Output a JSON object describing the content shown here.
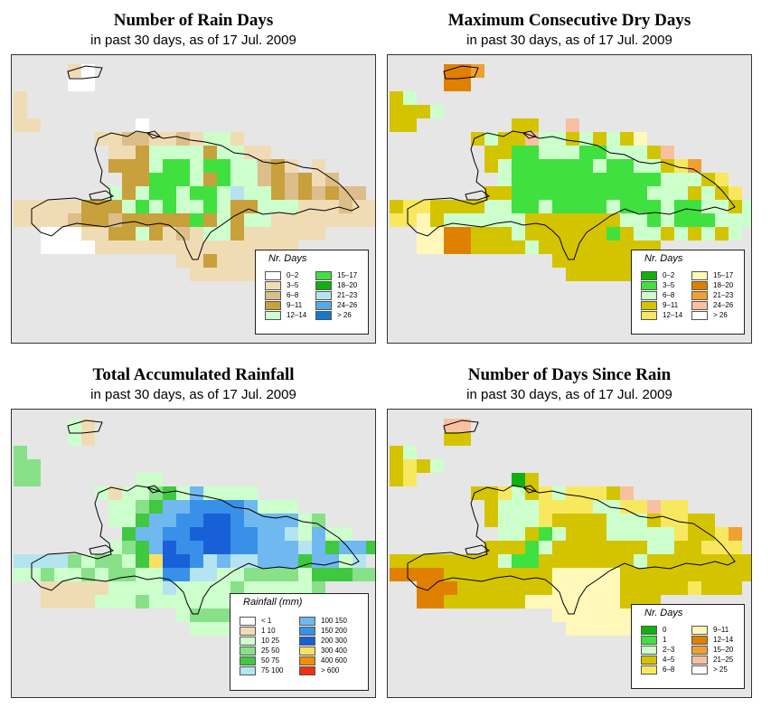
{
  "subtitle": "in past 30 days, as of  17 Jul. 2009",
  "panels": [
    {
      "id": "rain-days",
      "title": "Number of Rain Days",
      "subtitle": "in past 30 days, as of  17 Jul. 2009",
      "legend_title": "Nr. Days",
      "legend": [
        {
          "label": "0–2",
          "color": "#ffffff"
        },
        {
          "label": "3–5",
          "color": "#f0dcb4"
        },
        {
          "label": "6–8",
          "color": "#dcbe8a"
        },
        {
          "label": "9–11",
          "color": "#c8a03c"
        },
        {
          "label": "12–14",
          "color": "#ccffcc"
        },
        {
          "label": "15–17",
          "color": "#40e040"
        },
        {
          "label": "18–20",
          "color": "#10b010"
        },
        {
          "label": "21–23",
          "color": "#b4e4f0"
        },
        {
          "label": "24–26",
          "color": "#58a8e8"
        },
        {
          "label": "> 26",
          "color": "#1878c8"
        }
      ]
    },
    {
      "id": "max-dry-days",
      "title": "Maximum Consecutive Dry Days",
      "subtitle": "in past 30 days, as of  17 Jul. 2009",
      "legend_title": "Nr. Days",
      "legend": [
        {
          "label": "0–2",
          "color": "#10b010"
        },
        {
          "label": "3–5",
          "color": "#40e040"
        },
        {
          "label": "6–8",
          "color": "#ccffcc"
        },
        {
          "label": "9–11",
          "color": "#d4c400"
        },
        {
          "label": "12–14",
          "color": "#f8e860"
        },
        {
          "label": "15–17",
          "color": "#fff8b8"
        },
        {
          "label": "18–20",
          "color": "#e08000"
        },
        {
          "label": "21–23",
          "color": "#f0a030"
        },
        {
          "label": "24–26",
          "color": "#f8c0a0"
        },
        {
          "label": "> 26",
          "color": "#ffffff"
        }
      ]
    },
    {
      "id": "total-rainfall",
      "title": "Total Accumulated Rainfall",
      "subtitle": "in past 30 days, as of  17 Jul. 2009",
      "legend_title": "Rainfall (mm)",
      "legend": [
        {
          "label": "< 1",
          "color": "#ffffff"
        },
        {
          "label": "1   10",
          "color": "#f0dcb4"
        },
        {
          "label": "10   25",
          "color": "#ccffcc"
        },
        {
          "label": "25   50",
          "color": "#88e088"
        },
        {
          "label": "50   75",
          "color": "#40c840"
        },
        {
          "label": "75  100",
          "color": "#b4e4f0"
        },
        {
          "label": "100  150",
          "color": "#70b8f0"
        },
        {
          "label": "150  200",
          "color": "#3890e8"
        },
        {
          "label": "200  300",
          "color": "#1860d8"
        },
        {
          "label": "300  400",
          "color": "#f8e060"
        },
        {
          "label": "400  600",
          "color": "#f09000"
        },
        {
          "label": "> 600",
          "color": "#f03010"
        }
      ]
    },
    {
      "id": "days-since-rain",
      "title": "Number of Days Since Rain",
      "subtitle": "in past 30 days, as of  17 Jul. 2009",
      "legend_title": "Nr. Days",
      "legend": [
        {
          "label": "0",
          "color": "#10b010"
        },
        {
          "label": "1",
          "color": "#40e040"
        },
        {
          "label": "2–3",
          "color": "#ccffcc"
        },
        {
          "label": "4–5",
          "color": "#d4c400"
        },
        {
          "label": "6–8",
          "color": "#f8e860"
        },
        {
          "label": "9–11",
          "color": "#fff8b8"
        },
        {
          "label": "12–14",
          "color": "#e08000"
        },
        {
          "label": "15–20",
          "color": "#f0a030"
        },
        {
          "label": "21–25",
          "color": "#f8c0a0"
        },
        {
          "label": "> 25",
          "color": "#ffffff"
        }
      ]
    }
  ]
}
